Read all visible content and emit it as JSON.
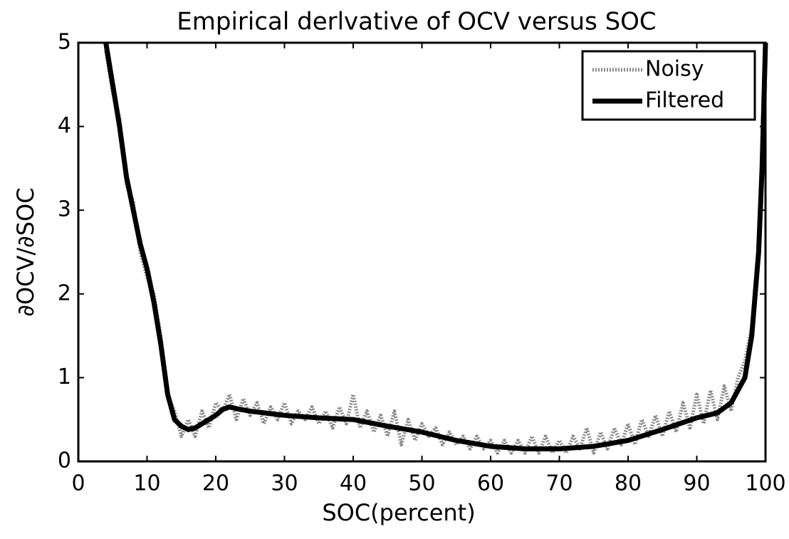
{
  "chart_data": {
    "type": "line",
    "title": "Empirical derlvative of OCV versus SOC",
    "xlabel": "SOC(percent)",
    "ylabel": "∂OCV/∂SOC",
    "xlim": [
      0,
      100
    ],
    "xticks": [
      0,
      10,
      20,
      30,
      40,
      50,
      60,
      70,
      80,
      90,
      100
    ],
    "ylim": [
      0,
      5
    ],
    "yticks": [
      0,
      1,
      2,
      3,
      4,
      5
    ],
    "legend": "upper right",
    "series": [
      {
        "name": "Noisy",
        "color": "#8a8a8a",
        "x": [
          4,
          5,
          6,
          7,
          8,
          9,
          10,
          11,
          12,
          13,
          14,
          15,
          16,
          17,
          18,
          19,
          20,
          21,
          22,
          23,
          24,
          25,
          26,
          27,
          28,
          29,
          30,
          31,
          32,
          33,
          34,
          35,
          36,
          37,
          38,
          39,
          40,
          41,
          42,
          43,
          44,
          45,
          46,
          47,
          48,
          49,
          50,
          51,
          52,
          53,
          54,
          55,
          56,
          57,
          58,
          59,
          60,
          61,
          62,
          63,
          64,
          65,
          66,
          67,
          68,
          69,
          70,
          71,
          72,
          73,
          74,
          75,
          76,
          77,
          78,
          79,
          80,
          81,
          82,
          83,
          84,
          85,
          86,
          87,
          88,
          89,
          90,
          91,
          92,
          93,
          94,
          95,
          96,
          97,
          98,
          99,
          100
        ],
        "values": [
          4.9,
          4.4,
          4.1,
          3.3,
          3.1,
          2.5,
          2.2,
          2.0,
          1.5,
          0.8,
          0.6,
          0.3,
          0.5,
          0.3,
          0.6,
          0.4,
          0.7,
          0.6,
          0.8,
          0.5,
          0.75,
          0.55,
          0.7,
          0.45,
          0.65,
          0.5,
          0.7,
          0.45,
          0.6,
          0.5,
          0.65,
          0.45,
          0.6,
          0.4,
          0.65,
          0.45,
          0.8,
          0.4,
          0.6,
          0.35,
          0.55,
          0.3,
          0.6,
          0.2,
          0.5,
          0.25,
          0.45,
          0.3,
          0.4,
          0.2,
          0.35,
          0.2,
          0.3,
          0.15,
          0.3,
          0.15,
          0.25,
          0.1,
          0.25,
          0.1,
          0.25,
          0.1,
          0.3,
          0.1,
          0.3,
          0.1,
          0.25,
          0.1,
          0.3,
          0.15,
          0.4,
          0.1,
          0.35,
          0.15,
          0.4,
          0.2,
          0.45,
          0.2,
          0.5,
          0.3,
          0.55,
          0.3,
          0.6,
          0.35,
          0.7,
          0.4,
          0.8,
          0.45,
          0.85,
          0.5,
          0.9,
          0.6,
          1.0,
          1.2,
          1.6,
          2.5,
          4.5
        ]
      },
      {
        "name": "Filtered",
        "color": "#000000",
        "x": [
          4,
          5,
          6,
          7,
          8,
          9,
          10,
          11,
          12,
          13,
          14,
          15,
          16,
          17,
          18,
          19,
          20,
          21,
          22,
          23,
          25,
          30,
          35,
          40,
          45,
          50,
          55,
          60,
          65,
          70,
          75,
          80,
          85,
          90,
          93,
          95,
          97,
          98,
          99,
          99.5,
          100
        ],
        "values": [
          5,
          4.5,
          4.0,
          3.4,
          3.0,
          2.6,
          2.3,
          1.9,
          1.4,
          0.8,
          0.5,
          0.42,
          0.38,
          0.4,
          0.45,
          0.5,
          0.55,
          0.62,
          0.65,
          0.63,
          0.6,
          0.55,
          0.52,
          0.5,
          0.42,
          0.35,
          0.25,
          0.18,
          0.15,
          0.15,
          0.18,
          0.25,
          0.38,
          0.52,
          0.58,
          0.7,
          1.0,
          1.5,
          2.5,
          3.5,
          5
        ]
      }
    ]
  }
}
